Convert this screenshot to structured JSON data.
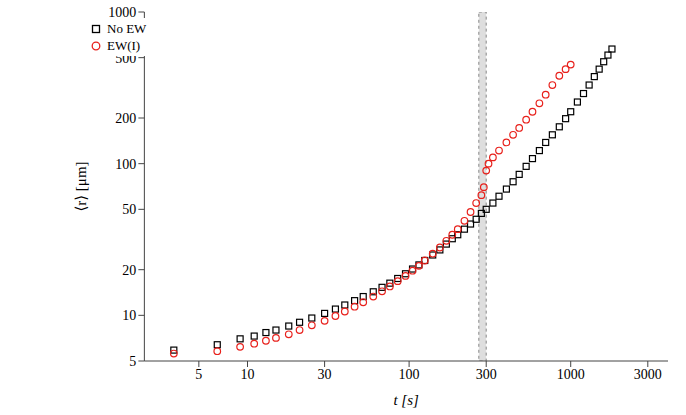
{
  "chart_data": {
    "type": "scatter",
    "x_label": "t [s]",
    "y_label": "⟨r⟩ [μm]",
    "log": true,
    "grid": false,
    "legend": "upper left",
    "xlim": [
      2.3,
      4000
    ],
    "xticks": [
      5,
      10,
      30,
      100,
      300,
      1000,
      3000
    ],
    "ylim": [
      5,
      1000
    ],
    "yticks": [
      5,
      10,
      20,
      50,
      100,
      200,
      500,
      1000
    ],
    "shaded_region": [
      270,
      300
    ],
    "series": [
      {
        "name": "No EW",
        "color": "#000000",
        "marker": "square",
        "x": [
          3.5,
          6.5,
          9,
          11,
          13,
          15,
          18,
          21,
          25,
          30,
          35,
          40,
          46,
          52,
          60,
          68,
          76,
          85,
          95,
          105,
          115,
          125,
          140,
          155,
          170,
          185,
          200,
          220,
          240,
          260,
          280,
          300,
          330,
          360,
          400,
          440,
          480,
          530,
          580,
          640,
          700,
          770,
          850,
          930,
          1000,
          1100,
          1200,
          1300,
          1400,
          1500,
          1600,
          1700,
          1800
        ],
        "values": [
          5.9,
          6.4,
          7.0,
          7.3,
          7.7,
          8.0,
          8.5,
          9.0,
          9.6,
          10.3,
          11.0,
          11.7,
          12.5,
          13.3,
          14.3,
          15.3,
          16.3,
          17.5,
          18.8,
          20.2,
          21.5,
          23,
          25,
          27,
          29.5,
          32,
          34,
          37,
          40,
          43,
          47,
          50,
          55,
          61,
          68,
          76,
          85,
          96,
          108,
          122,
          138,
          155,
          175,
          198,
          220,
          255,
          290,
          330,
          375,
          420,
          470,
          520,
          570
        ]
      },
      {
        "name": "EW(I)",
        "color": "#e8211c",
        "marker": "circle",
        "x": [
          3.5,
          6.5,
          9,
          11,
          13,
          15,
          18,
          21,
          25,
          30,
          35,
          40,
          46,
          52,
          60,
          68,
          76,
          85,
          95,
          105,
          115,
          125,
          140,
          155,
          170,
          185,
          200,
          220,
          240,
          260,
          280,
          290,
          300,
          310,
          330,
          360,
          400,
          440,
          480,
          530,
          580,
          640,
          700,
          770,
          850,
          930,
          1000
        ],
        "values": [
          5.6,
          5.8,
          6.2,
          6.5,
          6.8,
          7.1,
          7.5,
          8.0,
          8.6,
          9.2,
          9.9,
          10.6,
          11.4,
          12.2,
          13.3,
          14.4,
          15.5,
          16.8,
          18.2,
          19.7,
          21.2,
          23,
          25.5,
          28,
          31,
          34,
          37,
          42,
          48,
          55,
          62,
          70,
          90,
          100,
          110,
          122,
          138,
          155,
          172,
          195,
          220,
          250,
          285,
          330,
          380,
          420,
          450
        ]
      }
    ]
  }
}
